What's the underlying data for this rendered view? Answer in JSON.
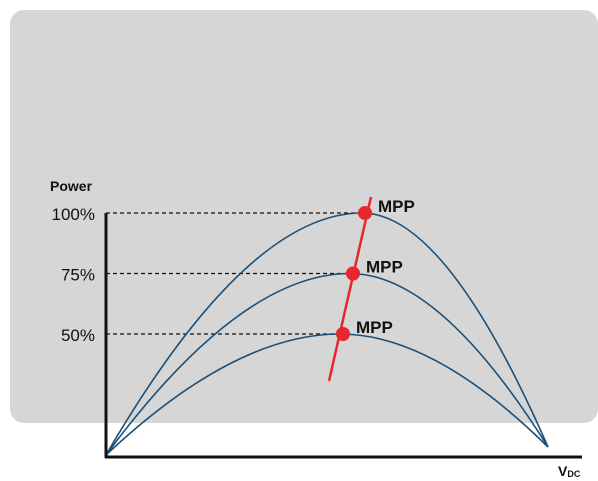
{
  "chart_data": {
    "type": "line",
    "ylabel": "Power",
    "xlabel": "V",
    "xlabel_subscript": "DC",
    "y_ticks": [
      "100%",
      "75%",
      "50%"
    ],
    "ylim": [
      0,
      100
    ],
    "series": [
      {
        "peak_percent": 100,
        "label": "MPP"
      },
      {
        "peak_percent": 75,
        "label": "MPP"
      },
      {
        "peak_percent": 50,
        "label": "MPP"
      }
    ],
    "mpp_line": true,
    "dashed_guides": true
  },
  "colors": {
    "panel": "#d6d6d6",
    "curve": "#1a4f78",
    "mpp": "#e8262d",
    "axis": "#111111"
  }
}
